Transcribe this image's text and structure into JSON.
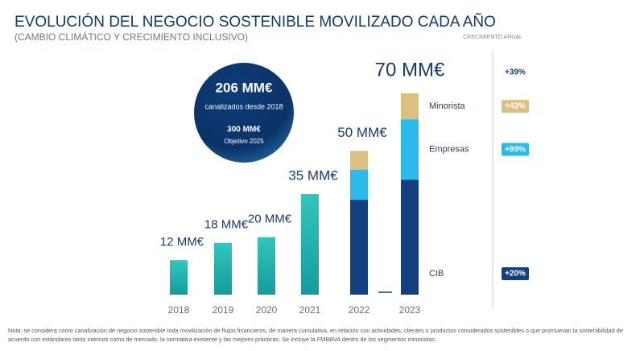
{
  "chart_data": {
    "type": "bar",
    "title": "EVOLUCIÓN DEL NEGOCIO SOSTENIBLE MOVILIZADO CADA AÑO",
    "subtitle": "(CAMBIO CLIMÁTICO Y CRECIMIENTO INCLUSIVO)",
    "categories": [
      "2018",
      "2019",
      "2020",
      "2021",
      "2022",
      "2023"
    ],
    "values": [
      12,
      18,
      20,
      35,
      50,
      70
    ],
    "value_labels": [
      "12 MM€",
      "18 MM€",
      "20 MM€",
      "35 MM€",
      "50 MM€",
      "70 MM€"
    ],
    "color": "#1fb0ad",
    "growth_header": "CRECIMIENTO ANUAL",
    "total_growth": "+39%",
    "series": [
      {
        "name": "CIB",
        "color": "#123f7e",
        "values": [
          null,
          null,
          null,
          null,
          33,
          40
        ],
        "growth": "+20%"
      },
      {
        "name": "Empresas",
        "color": "#2bbbea",
        "values": [
          null,
          null,
          null,
          null,
          10.5,
          21
        ],
        "growth": "+99%"
      },
      {
        "name": "Minorista",
        "color": "#dcc07f",
        "values": [
          null,
          null,
          null,
          null,
          6.5,
          9
        ],
        "growth": "+43%"
      }
    ],
    "callout": {
      "total": "206 MM€",
      "total_text": "canalizados desde 2018",
      "target": "300 MM€",
      "target_text": "Objetivo 2025"
    },
    "note": "Nota: se considera como canalización de negocio sostenible toda movilización de flujos financieros, de manera cumulativa, en relación con actividades, clientes o productos considerados sostenibles o que promuevan la sostenibilidad de acuerdo con estándares tanto internos como de mercado, la normativa existente y las mejores prácticas. Se incluye la FMBBVA dentro de los segmentos minoristas."
  }
}
